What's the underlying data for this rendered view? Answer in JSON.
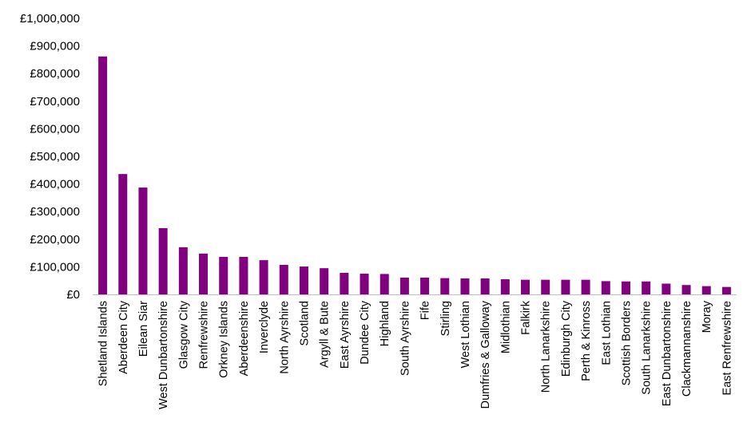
{
  "chart_data": {
    "type": "bar",
    "title": "",
    "xlabel": "",
    "ylabel": "",
    "ylim": [
      0,
      1000000
    ],
    "yticks": [
      0,
      100000,
      200000,
      300000,
      400000,
      500000,
      600000,
      700000,
      800000,
      900000,
      1000000
    ],
    "ytick_labels": [
      "£0",
      "£100,000",
      "£200,000",
      "£300,000",
      "£400,000",
      "£500,000",
      "£600,000",
      "£700,000",
      "£800,000",
      "£900,000",
      "£1,000,000"
    ],
    "grid": false,
    "legend": "none",
    "bar_color": "#800080",
    "categories": [
      "Shetland Islands",
      "Aberdeen City",
      "Eilean Siar",
      "West Dunbartonshire",
      "Glasgow City",
      "Renfrewshire",
      "Orkney Islands",
      "Aberdeenshire",
      "Inverclyde",
      "North Ayrshire",
      "Scotland",
      "Argyll & Bute",
      "East Ayrshire",
      "Dundee City",
      "Highland",
      "South Ayrshire",
      "Fife",
      "Stirling",
      "West Lothian",
      "Dumfries & Galloway",
      "Midlothian",
      "Falkirk",
      "North Lanarkshire",
      "Edinburgh City",
      "Perth & Kinross",
      "East Lothian",
      "Scottish Borders",
      "South Lanarkshire",
      "East Dunbartonshire",
      "Clackmannanshire",
      "Moray",
      "East Renfrewshire"
    ],
    "values": [
      862000,
      436000,
      387000,
      240000,
      171000,
      148000,
      136000,
      136000,
      124000,
      107000,
      101000,
      95000,
      78000,
      75000,
      74000,
      61000,
      61000,
      59000,
      58000,
      58000,
      55000,
      53000,
      53000,
      53000,
      53000,
      48000,
      47000,
      47000,
      39000,
      34000,
      30000,
      27000
    ]
  }
}
